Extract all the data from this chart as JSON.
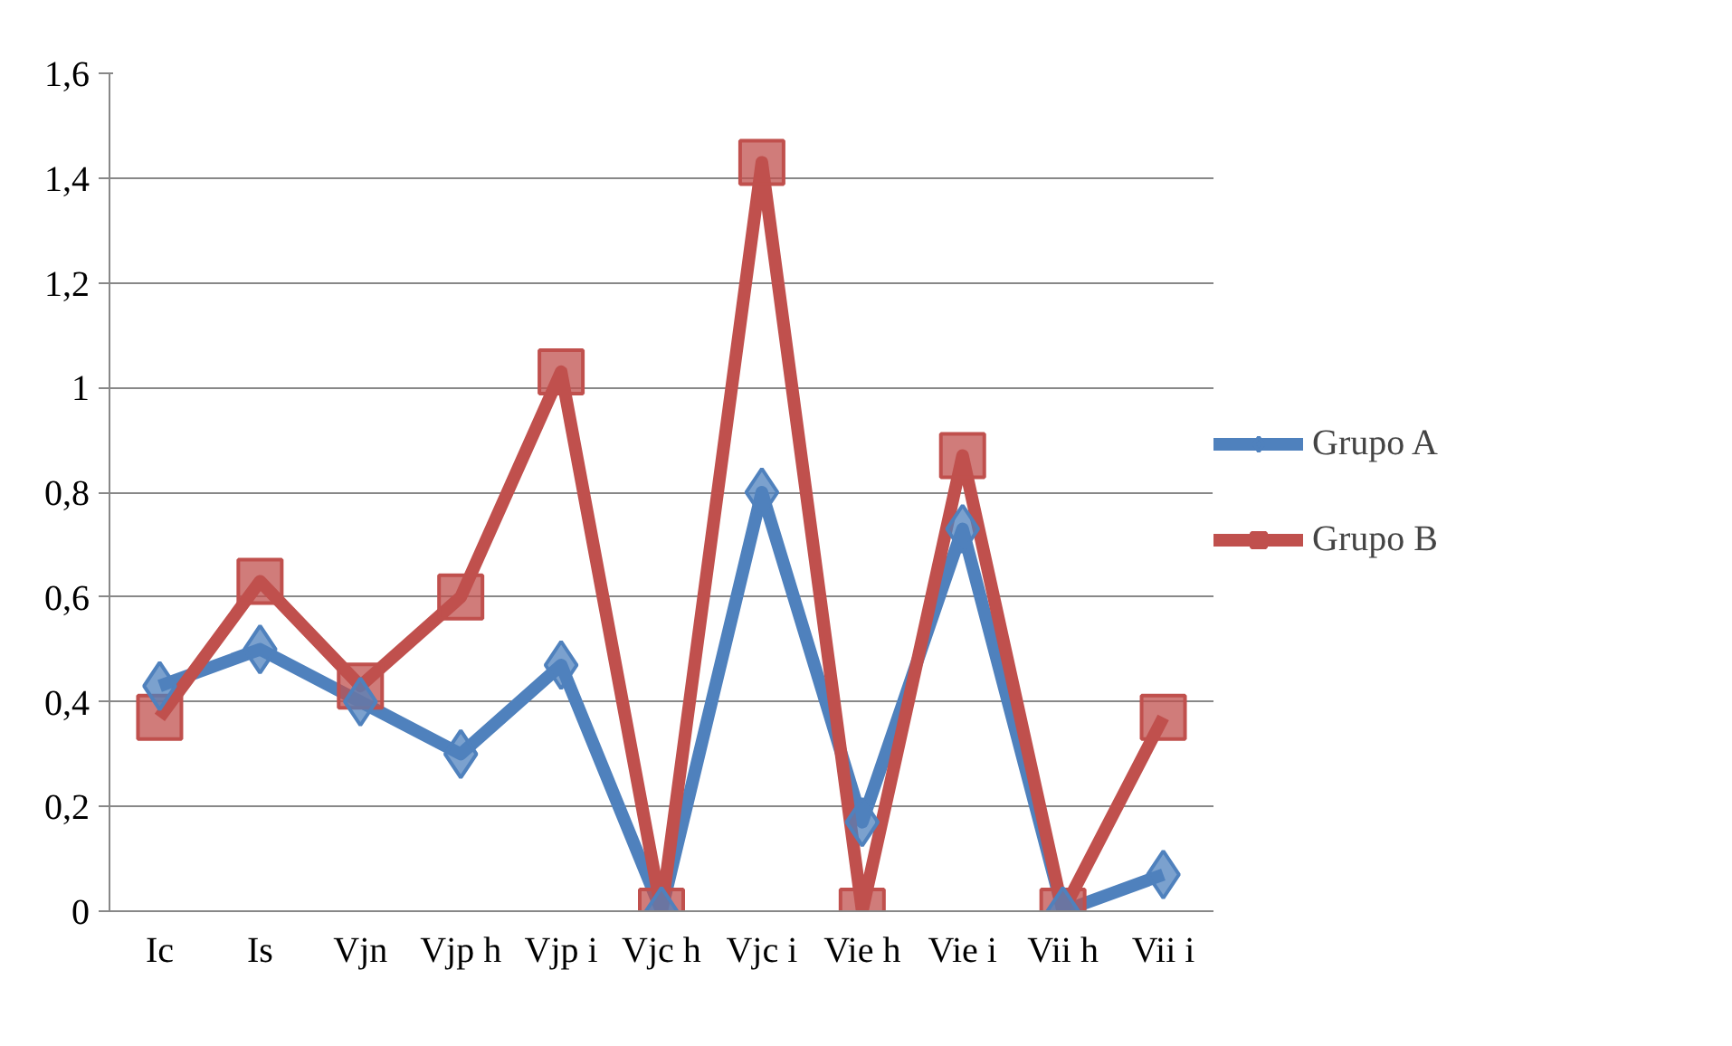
{
  "chart_data": {
    "type": "line",
    "categories": [
      "Ic",
      "Is",
      "Vjn",
      "Vjp h",
      "Vjp i",
      "Vjc h",
      "Vjc i",
      "Vie h",
      "Vie i",
      "Vii h",
      "Vii i"
    ],
    "series": [
      {
        "name": "Grupo A",
        "color": "#4f81bd",
        "marker": "diamond",
        "values": [
          0.43,
          0.5,
          0.4,
          0.3,
          0.47,
          0,
          0.8,
          0.17,
          0.73,
          0,
          0.07
        ]
      },
      {
        "name": "Grupo B",
        "color": "#c0504d",
        "marker": "square",
        "values": [
          0.37,
          0.63,
          0.43,
          0.6,
          1.03,
          0,
          1.43,
          0,
          0.87,
          0,
          0.37
        ]
      }
    ],
    "ylim": [
      0,
      1.6
    ],
    "yticks": [
      {
        "value": 0,
        "label": "0"
      },
      {
        "value": 0.2,
        "label": "0,2"
      },
      {
        "value": 0.4,
        "label": "0,4"
      },
      {
        "value": 0.6,
        "label": "0,6"
      },
      {
        "value": 0.8,
        "label": "0,8"
      },
      {
        "value": 1,
        "label": "1"
      },
      {
        "value": 1.2,
        "label": "1,2"
      },
      {
        "value": 1.4,
        "label": "1,4"
      },
      {
        "value": 1.6,
        "label": "1,6"
      }
    ],
    "grid": "y",
    "legend": "right"
  }
}
